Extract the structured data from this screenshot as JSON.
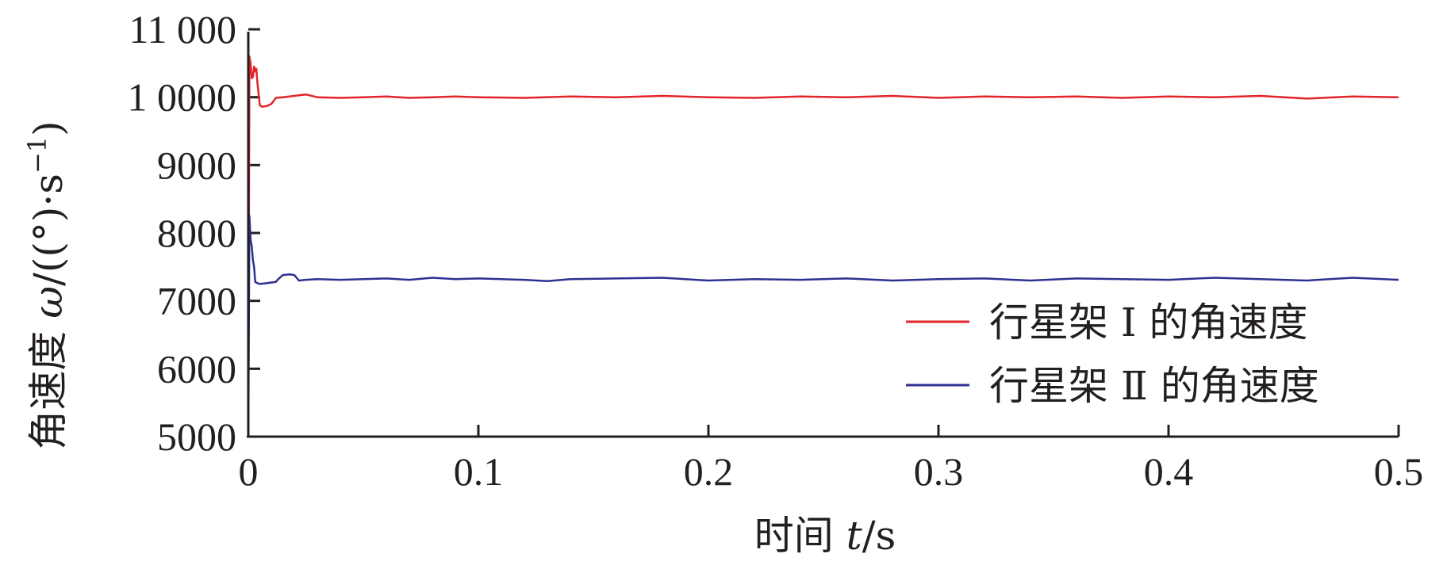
{
  "chart_data": {
    "type": "line",
    "title": "",
    "xlabel_prefix": "时间 ",
    "xlabel_var": "t",
    "xlabel_unit": "/s",
    "ylabel_prefix": "角速度 ",
    "ylabel_var": "ω",
    "ylabel_unit_open": "/((°)·s",
    "ylabel_unit_exp": "−1",
    "ylabel_unit_close": ")",
    "xlim": [
      0,
      0.5
    ],
    "ylim": [
      5000,
      11000
    ],
    "x_ticks": [
      0,
      0.1,
      0.2,
      0.3,
      0.4,
      0.5
    ],
    "x_tick_labels": [
      "0",
      "0.1",
      "0.2",
      "0.3",
      "0.4",
      "0.5"
    ],
    "y_ticks": [
      5000,
      6000,
      7000,
      8000,
      9000,
      10000,
      11000
    ],
    "y_tick_labels": [
      "5000",
      "6000",
      "7000",
      "8000",
      "9000",
      "1 0000",
      "11 000"
    ],
    "grid": false,
    "legend_position": "bottom-right",
    "series": [
      {
        "name": "行星架 Ⅰ 的角速度",
        "color": "#e3242b",
        "x": [
          0,
          0.0005,
          0.001,
          0.0015,
          0.002,
          0.0025,
          0.003,
          0.0035,
          0.004,
          0.005,
          0.006,
          0.008,
          0.01,
          0.012,
          0.015,
          0.02,
          0.025,
          0.03,
          0.04,
          0.05,
          0.06,
          0.07,
          0.08,
          0.09,
          0.1,
          0.12,
          0.14,
          0.16,
          0.18,
          0.2,
          0.22,
          0.24,
          0.26,
          0.28,
          0.3,
          0.32,
          0.34,
          0.36,
          0.38,
          0.4,
          0.42,
          0.44,
          0.46,
          0.48,
          0.5
        ],
        "values": [
          5000,
          10600,
          10500,
          10280,
          10300,
          10450,
          10380,
          10420,
          10200,
          9880,
          9860,
          9870,
          9900,
          9990,
          10000,
          10020,
          10040,
          10000,
          9990,
          10000,
          10010,
          9990,
          10000,
          10010,
          10000,
          9990,
          10010,
          10000,
          10020,
          10000,
          9990,
          10010,
          10000,
          10020,
          9990,
          10010,
          10000,
          10010,
          9990,
          10010,
          10000,
          10020,
          9980,
          10010,
          10000
        ]
      },
      {
        "name": "行星架 Ⅱ 的角速度",
        "color": "#2e3192",
        "x": [
          0,
          0.0005,
          0.001,
          0.0015,
          0.002,
          0.0025,
          0.003,
          0.004,
          0.005,
          0.008,
          0.01,
          0.012,
          0.013,
          0.015,
          0.018,
          0.02,
          0.022,
          0.025,
          0.03,
          0.04,
          0.05,
          0.06,
          0.07,
          0.08,
          0.09,
          0.1,
          0.12,
          0.13,
          0.14,
          0.16,
          0.18,
          0.2,
          0.22,
          0.24,
          0.26,
          0.28,
          0.3,
          0.32,
          0.34,
          0.36,
          0.38,
          0.4,
          0.42,
          0.44,
          0.46,
          0.48,
          0.5
        ],
        "values": [
          5000,
          8250,
          7900,
          7800,
          7600,
          7500,
          7280,
          7260,
          7250,
          7260,
          7270,
          7280,
          7320,
          7380,
          7390,
          7380,
          7300,
          7310,
          7320,
          7310,
          7320,
          7330,
          7310,
          7340,
          7320,
          7330,
          7310,
          7290,
          7320,
          7330,
          7340,
          7300,
          7320,
          7310,
          7330,
          7300,
          7320,
          7330,
          7300,
          7330,
          7320,
          7310,
          7340,
          7320,
          7300,
          7340,
          7310
        ]
      }
    ]
  }
}
